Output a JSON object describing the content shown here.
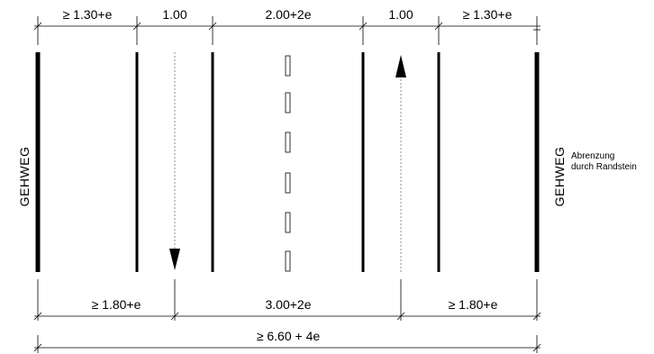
{
  "top_dimensions": [
    {
      "label": "≥ 1.30+e"
    },
    {
      "label": "1.00"
    },
    {
      "label": "2.00+2e"
    },
    {
      "label": "1.00"
    },
    {
      "label": "≥ 1.30+e"
    }
  ],
  "bottom_dimensions": [
    {
      "label": "≥ 1.80+e"
    },
    {
      "label": "3.00+2e"
    },
    {
      "label": "≥ 1.80+e"
    }
  ],
  "total_dimension": {
    "label": "≥ 6.60 + 4e"
  },
  "left_side": {
    "label": "GEHWEG"
  },
  "right_side": {
    "label": "GEHWEG"
  },
  "annotation": {
    "line1": "Abrenzung",
    "line2": "durch Randstein"
  }
}
